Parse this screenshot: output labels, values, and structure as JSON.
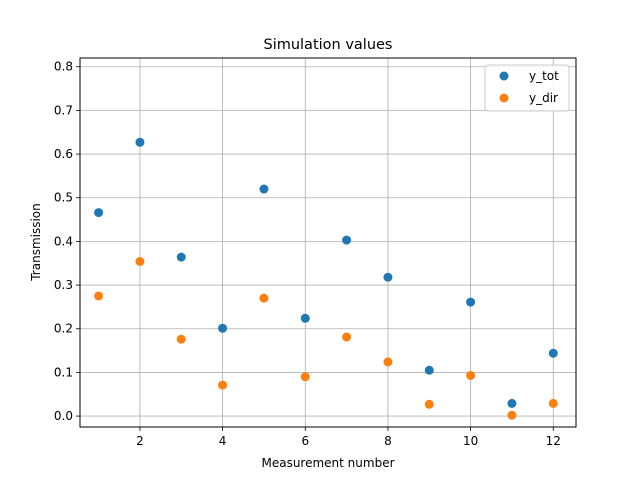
{
  "chart_data": {
    "type": "scatter",
    "title": "Simulation values",
    "xlabel": "Measurement number",
    "ylabel": "Transmission",
    "xlim": [
      0.55,
      12.55
    ],
    "ylim": [
      -0.025,
      0.82
    ],
    "xticks": [
      2,
      4,
      6,
      8,
      10,
      12
    ],
    "yticks": [
      0.0,
      0.1,
      0.2,
      0.3,
      0.4,
      0.5,
      0.6,
      0.7,
      0.8
    ],
    "grid": true,
    "legend_position": "top-right",
    "x": [
      1,
      2,
      3,
      4,
      5,
      6,
      7,
      8,
      9,
      10,
      11,
      12
    ],
    "series": [
      {
        "name": "y_tot",
        "color": "#1f77b4",
        "values": [
          0.466,
          0.627,
          0.364,
          0.201,
          0.52,
          0.224,
          0.403,
          0.318,
          0.105,
          0.261,
          0.029,
          0.144
        ]
      },
      {
        "name": "y_dir",
        "color": "#ff7f0e",
        "values": [
          0.275,
          0.354,
          0.176,
          0.071,
          0.27,
          0.09,
          0.181,
          0.124,
          0.027,
          0.093,
          0.002,
          0.029
        ]
      }
    ]
  }
}
